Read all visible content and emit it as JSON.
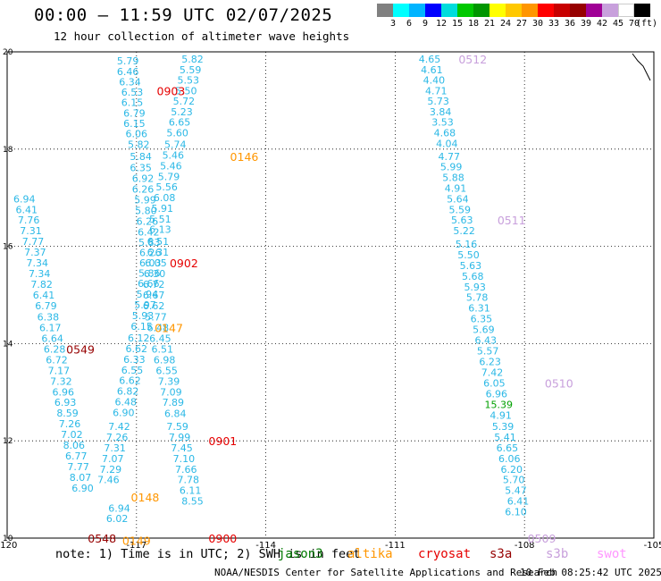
{
  "title": "00:00 – 11:59 UTC 02/07/2025",
  "subtitle": "12 hour collection of altimeter wave heights",
  "note": "note:  1) Time is in UTC;  2) SWH is in feet",
  "credit": "NOAA/NESDIS Center for Satellite Applications and Research",
  "credit_date": "10 Feb 08:25:42 UTC 2025",
  "legend": {
    "unit": "(ft)",
    "colors": [
      "#808080",
      "#00ffff",
      "#00b4ff",
      "#0000ff",
      "#00dcdc",
      "#00c800",
      "#009600",
      "#ffff00",
      "#ffc800",
      "#ff9600",
      "#ff0000",
      "#c80000",
      "#960000",
      "#a00096",
      "#c8a0dc",
      "#ffffff",
      "#000000"
    ],
    "ticks": [
      "3",
      "6",
      "9",
      "12",
      "15",
      "18",
      "21",
      "24",
      "27",
      "30",
      "33",
      "36",
      "39",
      "42",
      "45",
      "70"
    ]
  },
  "missions": [
    {
      "name": "jason3",
      "label": "jason3",
      "color": "#007800",
      "x": 311
    },
    {
      "name": "altika",
      "label": "altika",
      "color": "#ff9600",
      "x": 389
    },
    {
      "name": "cryosat",
      "label": "cryosat",
      "color": "#e60000",
      "x": 468
    },
    {
      "name": "s3a",
      "label": "s3a",
      "color": "#960000",
      "x": 548
    },
    {
      "name": "s3b",
      "label": "s3b",
      "color": "#c8a0dc",
      "x": 611
    },
    {
      "name": "swot",
      "label": "swot",
      "color": "#ff96ff",
      "x": 668
    }
  ],
  "chart_data": {
    "type": "scatter",
    "title": "00:00 – 11:59 UTC 02/07/2025",
    "subtitle": "12 hour collection of altimeter wave heights",
    "xlabel": "",
    "ylabel": "",
    "xlim": [
      -120,
      -105
    ],
    "ylim": [
      10,
      20
    ],
    "x_ticks": [
      -120,
      -117,
      -114,
      -111,
      -108,
      -105
    ],
    "y_ticks": [
      10,
      12,
      14,
      16,
      18,
      20
    ],
    "grid": true,
    "units": "ft",
    "series": [
      {
        "name": "s3a",
        "color": "#2bb8e6",
        "points": [
          [
            -117.2,
            19.82,
            "5.79"
          ],
          [
            -117.2,
            19.6,
            "6.46"
          ],
          [
            -117.15,
            19.38,
            "6.34"
          ],
          [
            -117.1,
            19.17,
            "6.53"
          ],
          [
            -117.1,
            18.96,
            "6.15"
          ],
          [
            -117.05,
            18.74,
            "6.79"
          ],
          [
            -117.05,
            18.53,
            "6.15"
          ],
          [
            -117.0,
            18.32,
            "6.06"
          ],
          [
            -116.95,
            18.1,
            "5.82"
          ],
          [
            -116.9,
            17.85,
            "5.84"
          ],
          [
            -116.9,
            17.62,
            "6.35"
          ],
          [
            -116.85,
            17.4,
            "6.92"
          ],
          [
            -116.85,
            17.18,
            "6.26"
          ],
          [
            -116.8,
            16.96,
            "5.99"
          ],
          [
            -116.78,
            16.74,
            "5.80"
          ],
          [
            -116.75,
            16.52,
            "6.26"
          ],
          [
            -116.72,
            16.3,
            "6.42"
          ],
          [
            -116.7,
            16.08,
            "5.83"
          ],
          [
            -116.68,
            15.87,
            "6.26"
          ],
          [
            -116.68,
            15.66,
            "6.03"
          ],
          [
            -116.7,
            15.45,
            "5.86"
          ],
          [
            -116.72,
            15.24,
            "6.66"
          ],
          [
            -116.75,
            15.02,
            "5.94"
          ],
          [
            -116.8,
            14.8,
            "5.97"
          ],
          [
            -116.85,
            14.58,
            "5.93"
          ],
          [
            -116.88,
            14.36,
            "6.15"
          ],
          [
            -116.95,
            14.12,
            "6.12"
          ],
          [
            -117.0,
            13.9,
            "6.62"
          ],
          [
            -117.05,
            13.68,
            "6.33"
          ],
          [
            -117.1,
            13.46,
            "6.55"
          ],
          [
            -117.15,
            13.24,
            "6.62"
          ],
          [
            -117.2,
            13.02,
            "6.82"
          ],
          [
            -117.25,
            12.8,
            "6.48"
          ],
          [
            -117.3,
            12.58,
            "6.90"
          ],
          [
            -117.4,
            12.3,
            "7.42"
          ],
          [
            -117.45,
            12.08,
            "7.26"
          ],
          [
            -117.5,
            11.86,
            "7.31"
          ],
          [
            -117.55,
            11.64,
            "7.07"
          ],
          [
            -117.6,
            11.42,
            "7.29"
          ],
          [
            -117.65,
            11.2,
            "7.46"
          ],
          [
            -117.4,
            10.62,
            "6.94"
          ],
          [
            -117.45,
            10.4,
            "6.02"
          ]
        ]
      },
      {
        "name": "cryosat",
        "color": "#2bb8e6",
        "points": [
          [
            -115.7,
            19.85,
            "5.82"
          ],
          [
            -115.75,
            19.63,
            "5.59"
          ],
          [
            -115.8,
            19.42,
            "5.53"
          ],
          [
            -115.85,
            19.2,
            "5.50"
          ],
          [
            -115.9,
            18.99,
            "5.72"
          ],
          [
            -115.95,
            18.77,
            "5.23"
          ],
          [
            -116.0,
            18.56,
            "6.65"
          ],
          [
            -116.05,
            18.34,
            "5.60"
          ],
          [
            -116.1,
            18.1,
            "5.74"
          ],
          [
            -116.15,
            17.88,
            "5.46"
          ],
          [
            -116.2,
            17.66,
            "5.46"
          ],
          [
            -116.25,
            17.44,
            "5.79"
          ],
          [
            -116.3,
            17.22,
            "5.56"
          ],
          [
            -116.35,
            17.0,
            "6.08"
          ],
          [
            -116.4,
            16.78,
            "5.91"
          ],
          [
            -116.45,
            16.56,
            "5.51"
          ],
          [
            -116.45,
            16.35,
            "6.13"
          ],
          [
            -116.5,
            16.1,
            "6.51"
          ],
          [
            -116.5,
            15.88,
            "6.31"
          ],
          [
            -116.55,
            15.66,
            "6.05"
          ],
          [
            -116.58,
            15.44,
            "6.30"
          ],
          [
            -116.6,
            15.22,
            "6.72"
          ],
          [
            -116.6,
            15.0,
            "6.67"
          ],
          [
            -116.6,
            14.78,
            "6.62"
          ],
          [
            -116.55,
            14.55,
            "5.77"
          ],
          [
            -116.5,
            14.33,
            "6.48"
          ],
          [
            -116.45,
            14.11,
            "6.45"
          ],
          [
            -116.4,
            13.89,
            "6.51"
          ],
          [
            -116.35,
            13.67,
            "6.98"
          ],
          [
            -116.3,
            13.45,
            "6.55"
          ],
          [
            -116.25,
            13.23,
            "7.39"
          ],
          [
            -116.2,
            13.01,
            "7.09"
          ],
          [
            -116.15,
            12.79,
            "7.89"
          ],
          [
            -116.1,
            12.56,
            "6.84"
          ],
          [
            -116.05,
            12.3,
            "7.59"
          ],
          [
            -116.0,
            12.08,
            "7.99"
          ],
          [
            -115.95,
            11.86,
            "7.45"
          ],
          [
            -115.9,
            11.64,
            "7.10"
          ],
          [
            -115.85,
            11.42,
            "7.66"
          ],
          [
            -115.8,
            11.2,
            "7.78"
          ],
          [
            -115.75,
            10.98,
            "6.11"
          ],
          [
            -115.7,
            10.76,
            "8.55"
          ]
        ]
      },
      {
        "name": "s3b",
        "color": "#2bb8e6",
        "points": [
          [
            -110.2,
            19.85,
            "4.65"
          ],
          [
            -110.15,
            19.63,
            "4.61"
          ],
          [
            -110.1,
            19.42,
            "4.40"
          ],
          [
            -110.05,
            19.2,
            "4.71"
          ],
          [
            -110.0,
            18.99,
            "5.73"
          ],
          [
            -109.95,
            18.77,
            "3.84"
          ],
          [
            -109.9,
            18.56,
            "3.53"
          ],
          [
            -109.85,
            18.34,
            "4.68"
          ],
          [
            -109.8,
            18.12,
            "4.04"
          ],
          [
            -109.75,
            17.85,
            "4.77"
          ],
          [
            -109.7,
            17.64,
            "5.99"
          ],
          [
            -109.65,
            17.42,
            "5.88"
          ],
          [
            -109.6,
            17.2,
            "4.91"
          ],
          [
            -109.55,
            16.98,
            "5.64"
          ],
          [
            -109.5,
            16.76,
            "5.59"
          ],
          [
            -109.45,
            16.54,
            "5.63"
          ],
          [
            -109.4,
            16.32,
            "5.22"
          ],
          [
            -109.35,
            16.05,
            "5.16"
          ],
          [
            -109.3,
            15.83,
            "5.50"
          ],
          [
            -109.25,
            15.61,
            "5.63"
          ],
          [
            -109.2,
            15.39,
            "5.68"
          ],
          [
            -109.15,
            15.17,
            "5.93"
          ],
          [
            -109.1,
            14.95,
            "5.78"
          ],
          [
            -109.05,
            14.73,
            "6.31"
          ],
          [
            -109.0,
            14.51,
            "6.35"
          ],
          [
            -108.95,
            14.29,
            "5.69"
          ],
          [
            -108.9,
            14.07,
            "6.43"
          ],
          [
            -108.85,
            13.85,
            "5.57"
          ],
          [
            -108.8,
            13.63,
            "6.23"
          ],
          [
            -108.75,
            13.41,
            "7.42"
          ],
          [
            -108.7,
            13.19,
            "6.05"
          ],
          [
            -108.65,
            12.97,
            "6.96"
          ],
          [
            -108.6,
            12.75,
            "15.39"
          ],
          [
            -108.55,
            12.53,
            "4.91"
          ],
          [
            -108.5,
            12.3,
            "5.39"
          ],
          [
            -108.45,
            12.08,
            "5.41"
          ],
          [
            -108.4,
            11.86,
            "6.65"
          ],
          [
            -108.35,
            11.64,
            "6.06"
          ],
          [
            -108.3,
            11.42,
            "6.20"
          ],
          [
            -108.25,
            11.2,
            "5.70"
          ],
          [
            -108.2,
            10.98,
            "5.47"
          ],
          [
            -108.15,
            10.76,
            "6.41"
          ],
          [
            -108.2,
            10.54,
            "6.10"
          ]
        ]
      },
      {
        "name": "s3a-west",
        "color": "#2bb8e6",
        "points": [
          [
            -119.6,
            16.98,
            "6.94"
          ],
          [
            -119.55,
            16.76,
            "6.41"
          ],
          [
            -119.5,
            16.54,
            "7.76"
          ],
          [
            -119.45,
            16.32,
            "7.31"
          ],
          [
            -119.4,
            16.1,
            "7.77"
          ],
          [
            -119.35,
            15.88,
            "7.37"
          ],
          [
            -119.3,
            15.66,
            "7.34"
          ],
          [
            -119.25,
            15.44,
            "7.34"
          ],
          [
            -119.2,
            15.22,
            "7.82"
          ],
          [
            -119.15,
            15.0,
            "6.41"
          ],
          [
            -119.1,
            14.78,
            "6.79"
          ],
          [
            -119.05,
            14.55,
            "6.38"
          ],
          [
            -119.0,
            14.33,
            "6.17"
          ],
          [
            -118.95,
            14.11,
            "6.64"
          ],
          [
            -118.9,
            13.89,
            "6.28"
          ],
          [
            -118.85,
            13.67,
            "6.72"
          ],
          [
            -118.8,
            13.45,
            "7.17"
          ],
          [
            -118.75,
            13.23,
            "7.32"
          ],
          [
            -118.7,
            13.01,
            "6.96"
          ],
          [
            -118.65,
            12.79,
            "6.93"
          ],
          [
            -118.6,
            12.57,
            "8.59"
          ],
          [
            -118.55,
            12.35,
            "7.26"
          ],
          [
            -118.5,
            12.13,
            "7.02"
          ],
          [
            -118.45,
            11.91,
            "8.06"
          ],
          [
            -118.4,
            11.69,
            "6.77"
          ],
          [
            -118.35,
            11.47,
            "7.77"
          ],
          [
            -118.3,
            11.25,
            "8.07"
          ],
          [
            -118.25,
            11.03,
            "6.90"
          ]
        ]
      }
    ],
    "annotations": [
      {
        "text": "0512",
        "color": "#c8a0dc",
        "x": -109.2,
        "y": 19.85
      },
      {
        "text": "0903",
        "color": "#e60000",
        "x": -116.2,
        "y": 19.2
      },
      {
        "text": "0146",
        "color": "#ff9600",
        "x": -114.5,
        "y": 17.85
      },
      {
        "text": "0511",
        "color": "#c8a0dc",
        "x": -108.3,
        "y": 16.54
      },
      {
        "text": "0902",
        "color": "#e60000",
        "x": -115.9,
        "y": 15.66
      },
      {
        "text": "0147",
        "color": "#ff9600",
        "x": -116.25,
        "y": 14.33
      },
      {
        "text": "0549",
        "color": "#960000",
        "x": -118.3,
        "y": 13.89
      },
      {
        "text": "0510",
        "color": "#c8a0dc",
        "x": -107.2,
        "y": 13.19
      },
      {
        "text": "0901",
        "color": "#e60000",
        "x": -115.0,
        "y": 12.0
      },
      {
        "text": "0148",
        "color": "#ff9600",
        "x": -116.8,
        "y": 10.85
      },
      {
        "text": "0548",
        "color": "#960000",
        "x": -117.8,
        "y": 10.0
      },
      {
        "text": "0149",
        "color": "#ff9600",
        "x": -117.0,
        "y": 9.95
      },
      {
        "text": "0900",
        "color": "#e60000",
        "x": -115.0,
        "y": 10.0
      },
      {
        "text": "0509",
        "color": "#c8a0dc",
        "x": -107.6,
        "y": 10.0
      }
    ]
  }
}
